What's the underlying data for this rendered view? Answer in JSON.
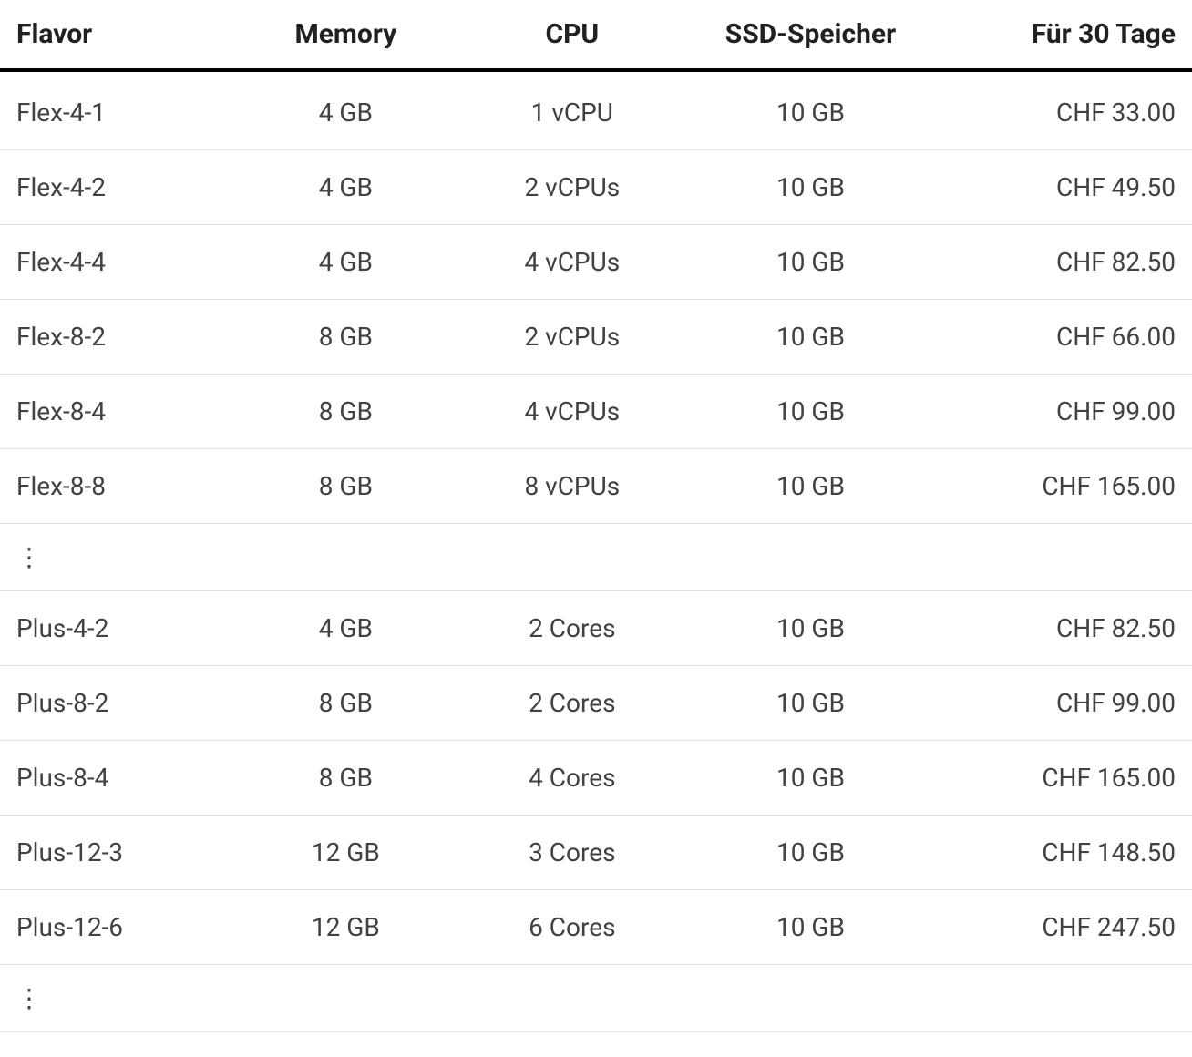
{
  "table": {
    "columns": [
      {
        "key": "flavor",
        "label": "Flavor",
        "align": "left",
        "width_pct": 20
      },
      {
        "key": "memory",
        "label": "Memory",
        "align": "center",
        "width_pct": 18
      },
      {
        "key": "cpu",
        "label": "CPU",
        "align": "center",
        "width_pct": 20
      },
      {
        "key": "ssd",
        "label": "SSD-Speicher",
        "align": "center",
        "width_pct": 20
      },
      {
        "key": "price",
        "label": "Für 30 Tage",
        "align": "right",
        "width_pct": 22
      }
    ],
    "rows": [
      {
        "type": "data",
        "flavor": "Flex-4-1",
        "memory": "4 GB",
        "cpu": "1 vCPU",
        "ssd": "10 GB",
        "price": "CHF 33.00"
      },
      {
        "type": "data",
        "flavor": "Flex-4-2",
        "memory": "4 GB",
        "cpu": "2 vCPUs",
        "ssd": "10 GB",
        "price": "CHF 49.50"
      },
      {
        "type": "data",
        "flavor": "Flex-4-4",
        "memory": "4 GB",
        "cpu": "4 vCPUs",
        "ssd": "10 GB",
        "price": "CHF 82.50"
      },
      {
        "type": "data",
        "flavor": "Flex-8-2",
        "memory": "8 GB",
        "cpu": "2 vCPUs",
        "ssd": "10 GB",
        "price": "CHF 66.00"
      },
      {
        "type": "data",
        "flavor": "Flex-8-4",
        "memory": "8 GB",
        "cpu": "4 vCPUs",
        "ssd": "10 GB",
        "price": "CHF 99.00"
      },
      {
        "type": "data",
        "flavor": "Flex-8-8",
        "memory": "8 GB",
        "cpu": "8 vCPUs",
        "ssd": "10 GB",
        "price": "CHF 165.00"
      },
      {
        "type": "ellipsis"
      },
      {
        "type": "data",
        "flavor": "Plus-4-2",
        "memory": "4 GB",
        "cpu": "2 Cores",
        "ssd": "10 GB",
        "price": "CHF 82.50"
      },
      {
        "type": "data",
        "flavor": "Plus-8-2",
        "memory": "8 GB",
        "cpu": "2 Cores",
        "ssd": "10 GB",
        "price": "CHF 99.00"
      },
      {
        "type": "data",
        "flavor": "Plus-8-4",
        "memory": "8 GB",
        "cpu": "4 Cores",
        "ssd": "10 GB",
        "price": "CHF 165.00"
      },
      {
        "type": "data",
        "flavor": "Plus-12-3",
        "memory": "12 GB",
        "cpu": "3 Cores",
        "ssd": "10 GB",
        "price": "CHF 148.50"
      },
      {
        "type": "data",
        "flavor": "Plus-12-6",
        "memory": "12 GB",
        "cpu": "6 Cores",
        "ssd": "10 GB",
        "price": "CHF 247.50"
      },
      {
        "type": "ellipsis"
      }
    ],
    "ellipsis_glyph": "⋮",
    "styling": {
      "header_fontsize": 30,
      "header_fontweight": 700,
      "header_border_bottom": "4px solid #000000",
      "cell_fontsize": 28,
      "cell_color": "#424242",
      "row_border_color": "#e0e0e0",
      "background_color": "#ffffff",
      "font_family": "Roboto / system sans-serif"
    }
  }
}
